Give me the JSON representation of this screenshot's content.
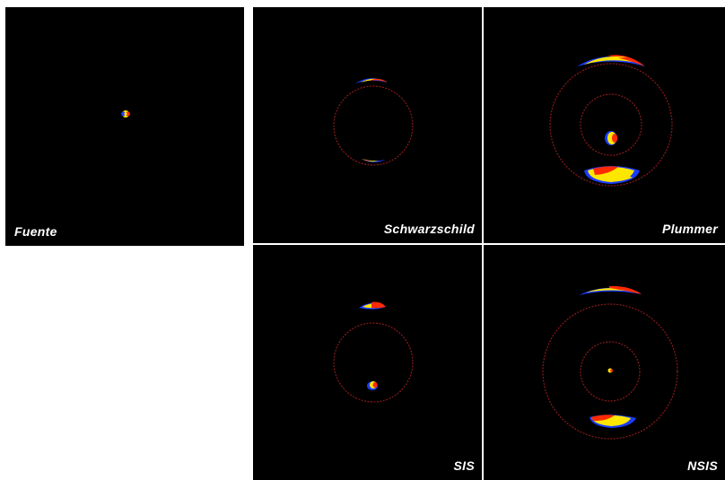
{
  "panels": {
    "fuente": {
      "label": "Fuente"
    },
    "schwarzschild": {
      "label": "Schwarzschild"
    },
    "plummer": {
      "label": "Plummer"
    },
    "sis": {
      "label": "SIS"
    },
    "nsis": {
      "label": "NSIS"
    }
  },
  "colors": {
    "background": "#000000",
    "critical_curve": "#8b1a1a",
    "image_red": "#ff2a00",
    "image_yellow": "#ffe600",
    "image_blue": "#1a3cff",
    "label": "#ffffff"
  }
}
